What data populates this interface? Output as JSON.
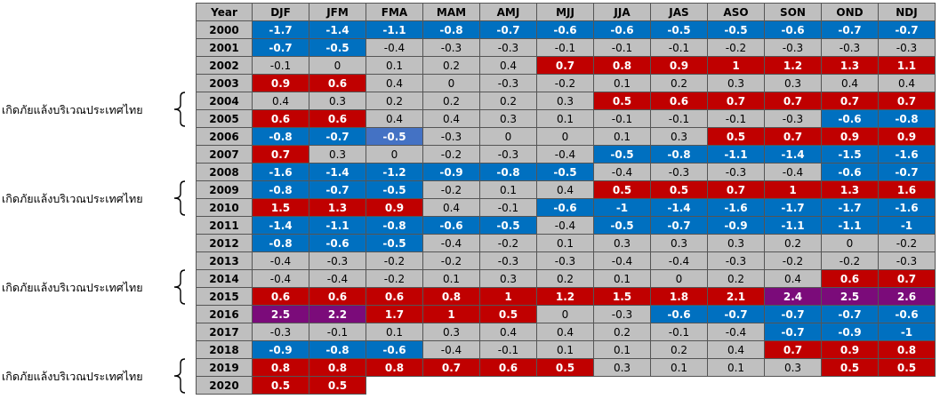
{
  "chart_data": {
    "type": "table",
    "columns": [
      "Year",
      "DJF",
      "JFM",
      "FMA",
      "MAM",
      "AMJ",
      "MJJ",
      "JJA",
      "JAS",
      "ASO",
      "SON",
      "OND",
      "NDJ"
    ],
    "rows": [
      {
        "year": "2000",
        "values": [
          "-1.7",
          "-1.4",
          "-1.1",
          "-0.8",
          "-0.7",
          "-0.6",
          "-0.6",
          "-0.5",
          "-0.5",
          "-0.6",
          "-0.7",
          "-0.7"
        ]
      },
      {
        "year": "2001",
        "values": [
          "-0.7",
          "-0.5",
          "-0.4",
          "-0.3",
          "-0.3",
          "-0.1",
          "-0.1",
          "-0.1",
          "-0.2",
          "-0.3",
          "-0.3",
          "-0.3"
        ]
      },
      {
        "year": "2002",
        "values": [
          "-0.1",
          "0",
          "0.1",
          "0.2",
          "0.4",
          "0.7",
          "0.8",
          "0.9",
          "1",
          "1.2",
          "1.3",
          "1.1"
        ]
      },
      {
        "year": "2003",
        "values": [
          "0.9",
          "0.6",
          "0.4",
          "0",
          "-0.3",
          "-0.2",
          "0.1",
          "0.2",
          "0.3",
          "0.3",
          "0.4",
          "0.4"
        ]
      },
      {
        "year": "2004",
        "values": [
          "0.4",
          "0.3",
          "0.2",
          "0.2",
          "0.2",
          "0.3",
          "0.5",
          "0.6",
          "0.7",
          "0.7",
          "0.7",
          "0.7"
        ]
      },
      {
        "year": "2005",
        "values": [
          "0.6",
          "0.6",
          "0.4",
          "0.4",
          "0.3",
          "0.1",
          "-0.1",
          "-0.1",
          "-0.1",
          "-0.3",
          "-0.6",
          "-0.8"
        ]
      },
      {
        "year": "2006",
        "values": [
          "-0.8",
          "-0.7",
          "-0.5",
          "-0.3",
          "0",
          "0",
          "0.1",
          "0.3",
          "0.5",
          "0.7",
          "0.9",
          "0.9"
        ]
      },
      {
        "year": "2007",
        "values": [
          "0.7",
          "0.3",
          "0",
          "-0.2",
          "-0.3",
          "-0.4",
          "-0.5",
          "-0.8",
          "-1.1",
          "-1.4",
          "-1.5",
          "-1.6"
        ]
      },
      {
        "year": "2008",
        "values": [
          "-1.6",
          "-1.4",
          "-1.2",
          "-0.9",
          "-0.8",
          "-0.5",
          "-0.4",
          "-0.3",
          "-0.3",
          "-0.4",
          "-0.6",
          "-0.7"
        ]
      },
      {
        "year": "2009",
        "values": [
          "-0.8",
          "-0.7",
          "-0.5",
          "-0.2",
          "0.1",
          "0.4",
          "0.5",
          "0.5",
          "0.7",
          "1",
          "1.3",
          "1.6"
        ]
      },
      {
        "year": "2010",
        "values": [
          "1.5",
          "1.3",
          "0.9",
          "0.4",
          "-0.1",
          "-0.6",
          "-1",
          "-1.4",
          "-1.6",
          "-1.7",
          "-1.7",
          "-1.6"
        ]
      },
      {
        "year": "2011",
        "values": [
          "-1.4",
          "-1.1",
          "-0.8",
          "-0.6",
          "-0.5",
          "-0.4",
          "-0.5",
          "-0.7",
          "-0.9",
          "-1.1",
          "-1.1",
          "-1"
        ]
      },
      {
        "year": "2012",
        "values": [
          "-0.8",
          "-0.6",
          "-0.5",
          "-0.4",
          "-0.2",
          "0.1",
          "0.3",
          "0.3",
          "0.3",
          "0.2",
          "0",
          "-0.2"
        ]
      },
      {
        "year": "2013",
        "values": [
          "-0.4",
          "-0.3",
          "-0.2",
          "-0.2",
          "-0.3",
          "-0.3",
          "-0.4",
          "-0.4",
          "-0.3",
          "-0.2",
          "-0.2",
          "-0.3"
        ]
      },
      {
        "year": "2014",
        "values": [
          "-0.4",
          "-0.4",
          "-0.2",
          "0.1",
          "0.3",
          "0.2",
          "0.1",
          "0",
          "0.2",
          "0.4",
          "0.6",
          "0.7"
        ]
      },
      {
        "year": "2015",
        "values": [
          "0.6",
          "0.6",
          "0.6",
          "0.8",
          "1",
          "1.2",
          "1.5",
          "1.8",
          "2.1",
          "2.4",
          "2.5",
          "2.6"
        ]
      },
      {
        "year": "2016",
        "values": [
          "2.5",
          "2.2",
          "1.7",
          "1",
          "0.5",
          "0",
          "-0.3",
          "-0.6",
          "-0.7",
          "-0.7",
          "-0.7",
          "-0.6"
        ]
      },
      {
        "year": "2017",
        "values": [
          "-0.3",
          "-0.1",
          "0.1",
          "0.3",
          "0.4",
          "0.4",
          "0.2",
          "-0.1",
          "-0.4",
          "-0.7",
          "-0.9",
          "-1"
        ]
      },
      {
        "year": "2018",
        "values": [
          "-0.9",
          "-0.8",
          "-0.6",
          "-0.4",
          "-0.1",
          "0.1",
          "0.1",
          "0.2",
          "0.4",
          "0.7",
          "0.9",
          "0.8"
        ]
      },
      {
        "year": "2019",
        "values": [
          "0.8",
          "0.8",
          "0.8",
          "0.7",
          "0.6",
          "0.5",
          "0.3",
          "0.1",
          "0.1",
          "0.3",
          "0.5",
          "0.5"
        ]
      },
      {
        "year": "2020",
        "values": [
          "0.5",
          "0.5"
        ]
      }
    ],
    "annotations": [
      {
        "text": "เกิดภัยแล้งบริเวณประเทศไทย",
        "years": [
          "2004",
          "2005"
        ]
      },
      {
        "text": "เกิดภัยแล้งบริเวณประเทศไทย",
        "years": [
          "2009",
          "2010"
        ]
      },
      {
        "text": "เกิดภัยแล้งบริเวณประเทศไทย",
        "years": [
          "2014",
          "2015"
        ]
      },
      {
        "text": "เกิดภัยแล้งบริเวณประเทศไทย",
        "years": [
          "2019",
          "2020"
        ]
      }
    ],
    "colors": {
      "neutral": "#c0c0c0",
      "header": "#bfbfbf",
      "cold": "#0070c0",
      "weak_cold": "#4472c4",
      "warm": "#c00000",
      "very_strong_warm": "#7b0b7a",
      "empty": "#ffffff"
    },
    "color_rules": [
      {
        "min": 2.2,
        "color": "very_strong_warm"
      },
      {
        "min": 0.5,
        "color": "warm"
      },
      {
        "max": -0.5,
        "color": "cold"
      }
    ],
    "special_cells": [
      {
        "year": "2006",
        "column": "FMA",
        "color": "weak_cold"
      }
    ]
  }
}
